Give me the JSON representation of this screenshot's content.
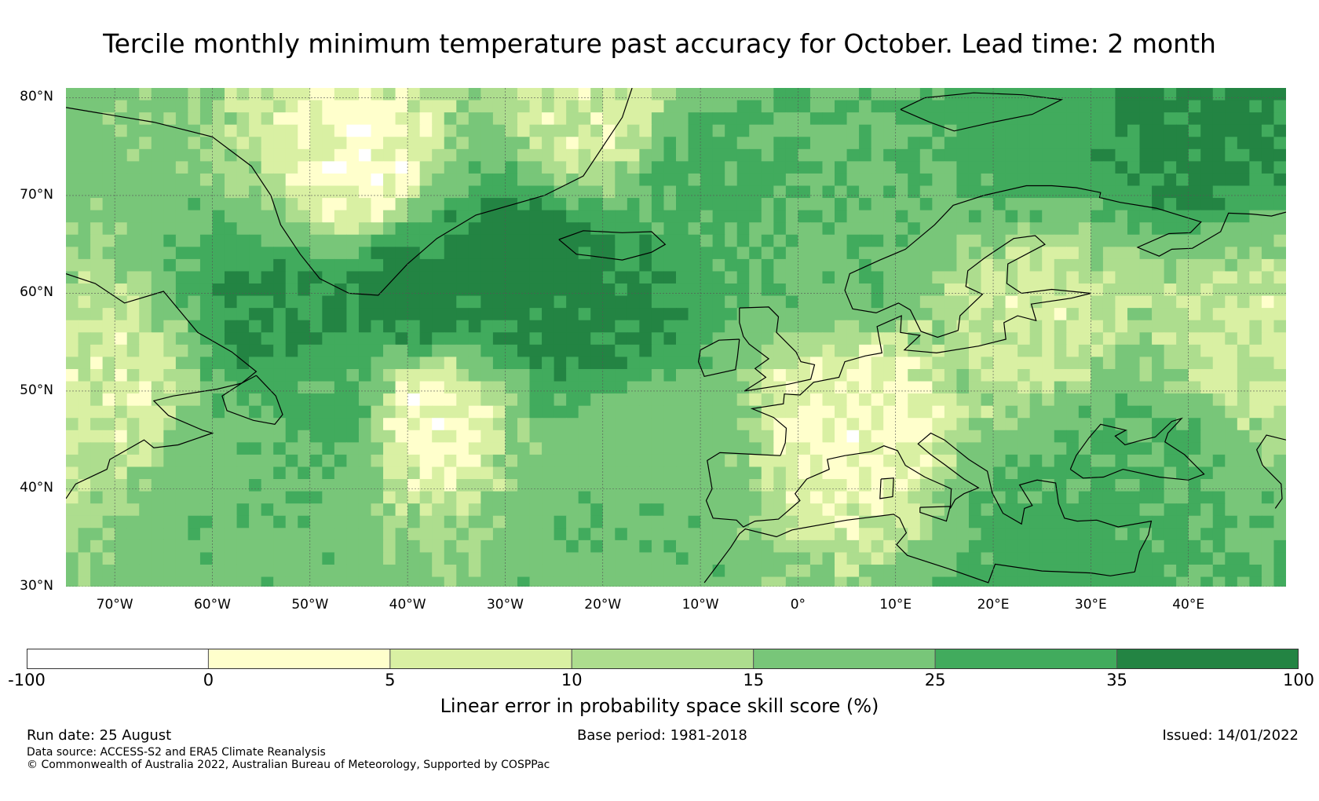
{
  "title": "Tercile monthly minimum temperature past accuracy for October. Lead time: 2 month",
  "map": {
    "projection": "plate-carree",
    "lon_range": [
      -75,
      50
    ],
    "lat_range": [
      30,
      81
    ],
    "graticule_spacing_deg": 10,
    "lat_ticks": [
      {
        "value": 80,
        "label": "80°N"
      },
      {
        "value": 70,
        "label": "70°N"
      },
      {
        "value": 60,
        "label": "60°N"
      },
      {
        "value": 50,
        "label": "50°N"
      },
      {
        "value": 40,
        "label": "40°N"
      },
      {
        "value": 30,
        "label": "30°N"
      }
    ],
    "lon_ticks": [
      {
        "value": -70,
        "label": "70°W"
      },
      {
        "value": -60,
        "label": "60°W"
      },
      {
        "value": -50,
        "label": "50°W"
      },
      {
        "value": -40,
        "label": "40°W"
      },
      {
        "value": -30,
        "label": "30°W"
      },
      {
        "value": -20,
        "label": "20°W"
      },
      {
        "value": -10,
        "label": "10°W"
      },
      {
        "value": 0,
        "label": "0°"
      },
      {
        "value": 10,
        "label": "10°E"
      },
      {
        "value": 20,
        "label": "20°E"
      },
      {
        "value": 30,
        "label": "30°E"
      },
      {
        "value": 40,
        "label": "40°E"
      }
    ]
  },
  "colorbar": {
    "title": "Linear error in probability space skill score (%)",
    "boundaries": [
      "-100",
      "0",
      "5",
      "10",
      "15",
      "25",
      "35",
      "100"
    ],
    "colors": [
      "#ffffff",
      "#ffffcc",
      "#d9f0a3",
      "#addd8e",
      "#78c679",
      "#41ab5d",
      "#238443"
    ]
  },
  "footer": {
    "run_date": "Run date: 25 August",
    "base_period": "Base period: 1981-2018",
    "issued": "Issued: 14/01/2022",
    "data_source": "Data source: ACCESS-S2 and ERA5 Climate Reanalysis",
    "copyright": "© Commonwealth of Australia 2022, Australian Bureau of Meteorology, Supported by COSPPac"
  },
  "chart_data": {
    "type": "heatmap",
    "title": "Tercile monthly minimum temperature past accuracy for October. Lead time: 2 month",
    "xlabel": "",
    "ylabel": "",
    "xlim": [
      -75,
      50
    ],
    "ylim": [
      30,
      81
    ],
    "grid": true,
    "value_label": "Linear error in probability space skill score (%)",
    "regions": [
      {
        "lon": -40,
        "lat": 60,
        "value": 40
      },
      {
        "lon": -30,
        "lat": 62,
        "value": 40
      },
      {
        "lon": -20,
        "lat": 58,
        "value": 38
      },
      {
        "lon": -52,
        "lat": 57,
        "value": 36
      },
      {
        "lon": -48,
        "lat": 50,
        "value": 28
      },
      {
        "lon": -58,
        "lat": 41,
        "value": 22
      },
      {
        "lon": -15,
        "lat": 45,
        "value": 20
      },
      {
        "lon": -18,
        "lat": 35,
        "value": 22
      },
      {
        "lon": -10,
        "lat": 72,
        "value": 28
      },
      {
        "lon": 5,
        "lat": 66,
        "value": 24
      },
      {
        "lon": 40,
        "lat": 77,
        "value": 38
      },
      {
        "lon": 25,
        "lat": 77,
        "value": 30
      },
      {
        "lon": 35,
        "lat": 43,
        "value": 26
      },
      {
        "lon": 28,
        "lat": 33,
        "value": 30
      },
      {
        "lon": -45,
        "lat": 72,
        "value": 3
      },
      {
        "lon": -38,
        "lat": 48,
        "value": 3
      },
      {
        "lon": 5,
        "lat": 47,
        "value": 4
      },
      {
        "lon": -20,
        "lat": 78,
        "value": 8
      },
      {
        "lon": 25,
        "lat": 58,
        "value": 9
      },
      {
        "lon": 45,
        "lat": 55,
        "value": 9
      },
      {
        "lon": -70,
        "lat": 50,
        "value": 8
      }
    ]
  }
}
